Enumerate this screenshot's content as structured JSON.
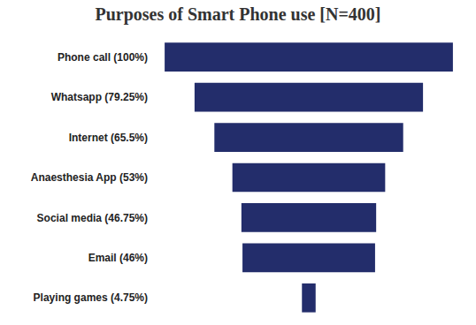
{
  "chart_data": {
    "type": "funnel",
    "title": "Purposes of Smart Phone use [N=400]",
    "orientation": "horizontal",
    "categories": [
      "Phone call (100%)",
      "Whatsapp (79.25%)",
      "Internet (65.5%)",
      "Anaesthesia App (53%)",
      "Social media (46.75%)",
      "Email (46%)",
      "Playing games (4.75%)"
    ],
    "values": [
      100,
      79.25,
      65.5,
      53,
      46.75,
      46,
      4.75
    ],
    "color": "#232d6b",
    "tick_labels": "y",
    "grid": false
  }
}
